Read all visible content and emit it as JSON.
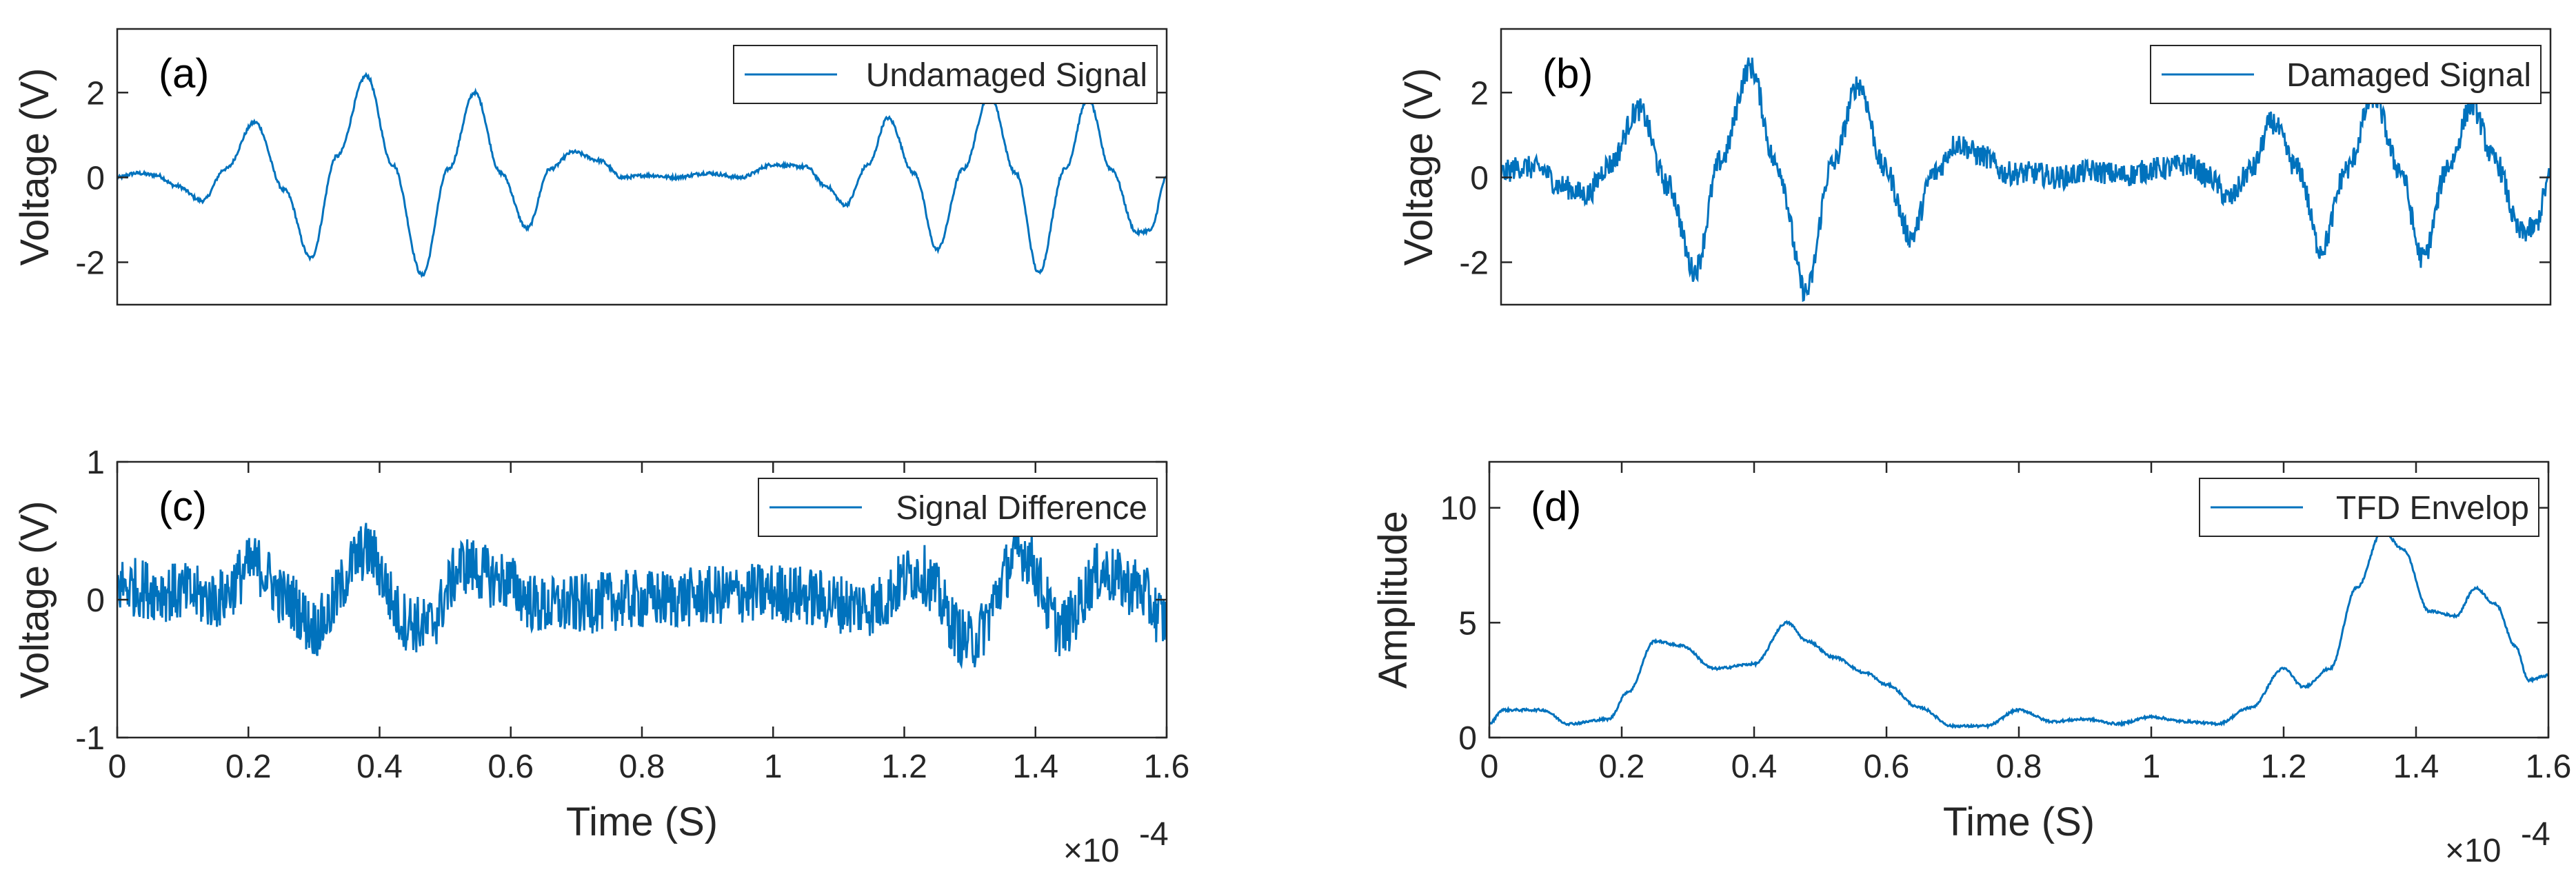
{
  "chart_data": [
    {
      "id": "a",
      "type": "line",
      "panel_label": "(a)",
      "ylabel": "Voltage (V)",
      "xlabel": "",
      "ylim": [
        -3,
        3.5
      ],
      "xlim": [
        0,
        1.6
      ],
      "yticks": [
        -2,
        0,
        2
      ],
      "ytick_labels": [
        "-2",
        "0",
        "2"
      ],
      "xticks": [],
      "xtick_labels": [],
      "exponent_label": "",
      "legend": "Undamaged Signal",
      "legend_position": "top-right",
      "color": "#0072BD",
      "noise": 0.04,
      "series": [
        {
          "name": "Undamaged Signal",
          "x": [
            0,
            0.03,
            0.06,
            0.09,
            0.13,
            0.165,
            0.21,
            0.255,
            0.295,
            0.335,
            0.38,
            0.42,
            0.465,
            0.505,
            0.545,
            0.585,
            0.625,
            0.66,
            0.695,
            0.735,
            0.77,
            0.81,
            0.85,
            0.9,
            0.95,
            1.0,
            1.05,
            1.08,
            1.11,
            1.145,
            1.175,
            1.215,
            1.25,
            1.29,
            1.33,
            1.37,
            1.405,
            1.445,
            1.48,
            1.515,
            1.555,
            1.575,
            1.6
          ],
          "y": [
            0,
            0.1,
            0.05,
            -0.2,
            -0.55,
            0.2,
            1.3,
            -0.3,
            -1.9,
            0.5,
            2.4,
            0.3,
            -2.3,
            0.2,
            2.0,
            0.1,
            -1.2,
            0.2,
            0.6,
            0.4,
            0.0,
            0.05,
            0.0,
            0.1,
            0.0,
            0.3,
            0.25,
            -0.2,
            -0.65,
            0.3,
            1.4,
            0.1,
            -1.7,
            0.2,
            1.95,
            0.1,
            -2.25,
            0.2,
            1.85,
            0.2,
            -1.3,
            -1.25,
            0
          ]
        }
      ]
    },
    {
      "id": "b",
      "type": "line",
      "panel_label": "(b)",
      "ylabel": "Voltage (V)",
      "xlabel": "",
      "ylim": [
        -3,
        3.5
      ],
      "xlim": [
        0,
        1.6
      ],
      "yticks": [
        -2,
        0,
        2
      ],
      "ytick_labels": [
        "-2",
        "0",
        "2"
      ],
      "xticks": [],
      "xtick_labels": [],
      "exponent_label": "",
      "legend": "Damaged Signal",
      "legend_position": "top-right",
      "color": "#0072BD",
      "noise": 0.28,
      "series": [
        {
          "name": "Damaged Signal",
          "x": [
            0,
            0.03,
            0.06,
            0.09,
            0.13,
            0.165,
            0.21,
            0.255,
            0.295,
            0.335,
            0.38,
            0.42,
            0.465,
            0.505,
            0.545,
            0.585,
            0.625,
            0.66,
            0.695,
            0.735,
            0.77,
            0.81,
            0.85,
            0.9,
            0.95,
            1.0,
            1.05,
            1.08,
            1.11,
            1.145,
            1.175,
            1.215,
            1.25,
            1.29,
            1.33,
            1.37,
            1.405,
            1.445,
            1.48,
            1.515,
            1.555,
            1.575,
            1.6
          ],
          "y": [
            0.1,
            0.25,
            0.2,
            -0.2,
            -0.4,
            0.3,
            1.6,
            -0.2,
            -2.2,
            0.4,
            2.6,
            0.3,
            -2.7,
            0.3,
            2.2,
            0.2,
            -1.4,
            0.1,
            0.8,
            0.5,
            0.1,
            0.1,
            0.0,
            0.15,
            0.05,
            0.2,
            0.3,
            0.0,
            -0.5,
            0.2,
            1.3,
            0.2,
            -1.7,
            0.2,
            1.9,
            0.2,
            -1.9,
            0.3,
            1.7,
            0.4,
            -1.3,
            -1.2,
            0
          ]
        }
      ]
    },
    {
      "id": "c",
      "type": "line",
      "panel_label": "(c)",
      "ylabel": "Voltage (V)",
      "xlabel": "Time (S)",
      "ylim": [
        -1,
        1
      ],
      "xlim": [
        0,
        1.6
      ],
      "yticks": [
        -1,
        0,
        1
      ],
      "ytick_labels": [
        "-1",
        "0",
        "1"
      ],
      "xticks": [
        0,
        0.2,
        0.4,
        0.6,
        0.8,
        1,
        1.2,
        1.4,
        1.6
      ],
      "xtick_labels": [
        "0",
        "0.2",
        "0.4",
        "0.6",
        "0.8",
        "1",
        "1.2",
        "1.4",
        "1.6"
      ],
      "exponent_label": "×10",
      "exponent_power": "-4",
      "legend": "Signal Difference",
      "legend_position": "top-right",
      "color": "#0072BD",
      "noise": 0.22,
      "series": [
        {
          "name": "Signal Difference",
          "x": [
            0,
            0.1,
            0.15,
            0.21,
            0.26,
            0.3,
            0.38,
            0.44,
            0.47,
            0.53,
            0.58,
            0.65,
            0.8,
            1.0,
            1.15,
            1.22,
            1.3,
            1.38,
            1.44,
            1.5,
            1.55,
            1.6
          ],
          "y": [
            0.1,
            0.05,
            0.0,
            0.25,
            0.0,
            -0.2,
            0.35,
            -0.15,
            -0.2,
            0.25,
            0.15,
            -0.05,
            0.0,
            0.05,
            -0.05,
            0.2,
            -0.3,
            0.35,
            -0.2,
            0.2,
            0.1,
            -0.15
          ]
        }
      ]
    },
    {
      "id": "d",
      "type": "line",
      "panel_label": "(d)",
      "ylabel": "Amplitude",
      "xlabel": "Time (S)",
      "ylim": [
        0,
        12
      ],
      "xlim": [
        0,
        1.6
      ],
      "yticks": [
        0,
        5,
        10
      ],
      "ytick_labels": [
        "0",
        "5",
        "10"
      ],
      "xticks": [
        0,
        0.2,
        0.4,
        0.6,
        0.8,
        1,
        1.2,
        1.4,
        1.6
      ],
      "xtick_labels": [
        "0",
        "0.2",
        "0.4",
        "0.6",
        "0.8",
        "1",
        "1.2",
        "1.4",
        "1.6"
      ],
      "exponent_label": "×10",
      "exponent_power": "-4",
      "legend": "TFD Envelop",
      "legend_position": "top-right",
      "color": "#0072BD",
      "noise": 0.05,
      "series": [
        {
          "name": "TFD Envelop",
          "x": [
            0,
            0.02,
            0.08,
            0.12,
            0.18,
            0.21,
            0.25,
            0.29,
            0.34,
            0.4,
            0.45,
            0.48,
            0.52,
            0.57,
            0.6,
            0.65,
            0.7,
            0.75,
            0.8,
            0.85,
            0.9,
            0.95,
            1.0,
            1.05,
            1.1,
            1.15,
            1.2,
            1.23,
            1.27,
            1.31,
            1.35,
            1.38,
            1.42,
            1.46,
            1.49,
            1.52,
            1.55,
            1.57,
            1.6
          ],
          "y": [
            0.6,
            1.2,
            1.2,
            0.6,
            0.8,
            2.0,
            4.2,
            4.0,
            3.0,
            3.2,
            5.0,
            4.2,
            3.5,
            2.8,
            2.3,
            1.3,
            0.5,
            0.5,
            1.2,
            0.7,
            0.8,
            0.6,
            0.9,
            0.7,
            0.6,
            1.3,
            3.0,
            2.2,
            3.0,
            6.5,
            9.0,
            8.2,
            5.5,
            5.3,
            6.5,
            5.8,
            4.0,
            2.5,
            2.7
          ]
        }
      ]
    }
  ]
}
